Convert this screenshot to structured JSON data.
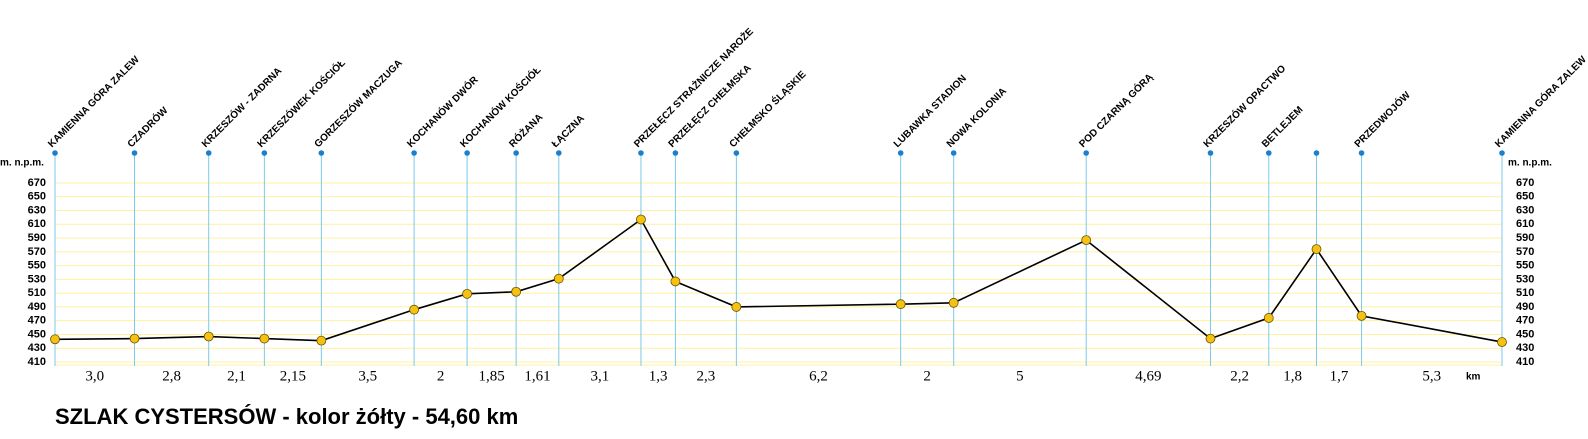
{
  "chart_data": {
    "type": "line",
    "title": "SZLAK CYSTERSÓW - kolor żółty - 54,60 km",
    "y_unit_label": "m. n.p.m.",
    "x_unit_label": "km",
    "stations": [
      "KAMIENNA GÓRA ZALEW",
      "CZADRÓW",
      "KRZESZÓW - ZADRNA",
      "KRZESZÓWEK KOŚCIÓŁ",
      "GORZESZÓW MACZUGA",
      "KOCHANÓW DWÓR",
      "KOCHANÓW KOŚCIÓŁ",
      "RÓŻANA",
      "ŁĄCZNA",
      "PRZEŁĘCZ STRAŻNICZE NAROŻE",
      "PRZEŁĘCZ CHEŁMSKA",
      "CHEŁMSKO ŚLĄSKIE",
      "LUBAWKA STADION",
      "NOWA KOLONIA",
      "POD CZARNĄ GÓRĄ",
      "KRZESZÓW OPACTWO",
      "BETLEJEM",
      null,
      "PRZEDWOJÓW",
      "KAMIENNA GÓRA ZALEW"
    ],
    "elevations": [
      443,
      444,
      447,
      444,
      441,
      486,
      509,
      512,
      531,
      617,
      527,
      490,
      494,
      496,
      587,
      444,
      474,
      574,
      477,
      439
    ],
    "distances": [
      3.0,
      2.8,
      2.1,
      2.15,
      3.5,
      2,
      1.85,
      1.61,
      3.1,
      1.3,
      2.3,
      6.2,
      2,
      5,
      4.69,
      2.2,
      1.8,
      1.7,
      5.3
    ],
    "distance_labels": [
      "3,0",
      "2,8",
      "2,1",
      "2,15",
      "3,5",
      "2",
      "1,85",
      "1,61",
      "3,1",
      "1,3",
      "2,3",
      "6,2",
      "2",
      "5",
      "4,69",
      "2,2",
      "1,8",
      "1,7",
      "5,3"
    ],
    "ylim": [
      410,
      670
    ],
    "yticks": [
      410,
      430,
      450,
      470,
      490,
      510,
      530,
      550,
      570,
      590,
      610,
      630,
      650,
      670
    ],
    "line_color": "#000000",
    "point_color": "#f5c211",
    "station_line_color": "#7cc8ec",
    "station_dot_color": "#1a7fcf",
    "grid_color": "#fff1a0",
    "grid": true
  }
}
